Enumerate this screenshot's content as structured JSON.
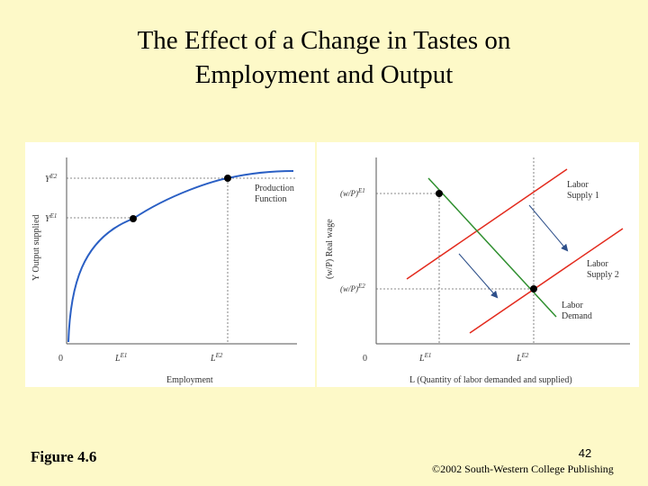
{
  "slide": {
    "title_line1": "The Effect of a Change in Tastes on",
    "title_line2": "Employment and Output",
    "figure_label": "Figure 4.6",
    "page_number": "42",
    "copyright": "©2002 South-Western College Publishing"
  },
  "left_chart": {
    "y_axis_label": "Y Output supplied",
    "y_tick_e2": "Y",
    "y_tick_e2_sup": "E2",
    "y_tick_e1": "Y",
    "y_tick_e1_sup": "E1",
    "x_tick_e1": "L",
    "x_tick_e1_sup": "E1",
    "x_tick_e2": "L",
    "x_tick_e2_sup": "E2",
    "origin": "0",
    "x_axis_label": "Employment",
    "curve_label_line1": "Production",
    "curve_label_line2": "Function"
  },
  "right_chart": {
    "y_axis_label": "(w/P) Real wage",
    "y_tick_e1": "(w/P)",
    "y_tick_e1_sup": "E1",
    "y_tick_e2": "(w/P)",
    "y_tick_e2_sup": "E2",
    "x_tick_e1": "L",
    "x_tick_e1_sup": "E1",
    "x_tick_e2": "L",
    "x_tick_e2_sup": "E2",
    "origin": "0",
    "x_axis_label": "L (Quantity of labor demanded and supplied)",
    "supply1_line1": "Labor",
    "supply1_line2": "Supply 1",
    "supply2_line1": "Labor",
    "supply2_line2": "Supply 2",
    "demand_line1": "Labor",
    "demand_line2": "Demand"
  },
  "colors": {
    "background": "#fdf9c8",
    "production_curve": "#2a5fc4",
    "labor_supply": "#e32b1e",
    "labor_demand": "#2f8f2f",
    "arrow": "#2d4f8a"
  }
}
